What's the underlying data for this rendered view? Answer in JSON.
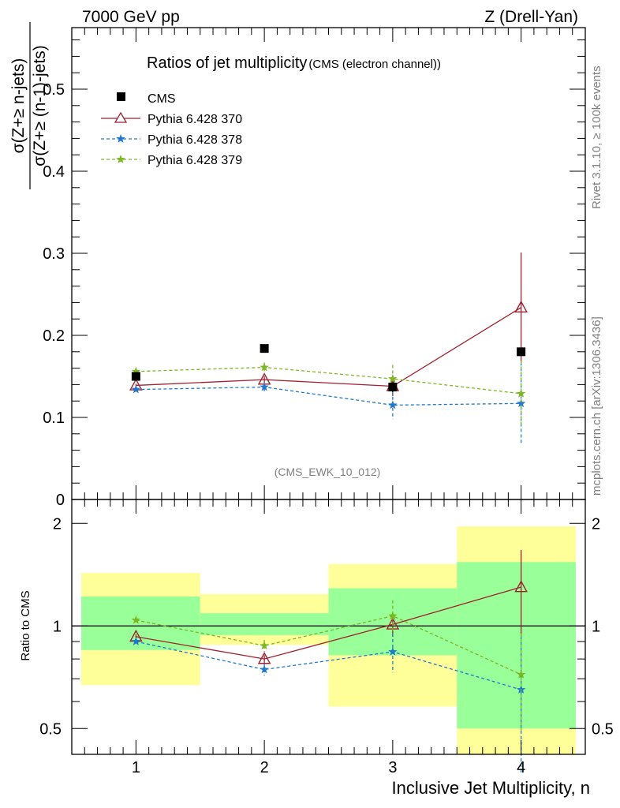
{
  "header": {
    "left": "7000 GeV pp",
    "right": "Z (Drell-Yan)"
  },
  "side_text": {
    "rivet": "Rivet 3.1.10, ≥ 100k events",
    "mcplots": "mcplots.cern.ch [arXiv:1306.3436]"
  },
  "chart_data": [
    {
      "type": "line",
      "panel": "main",
      "title": "Ratios of jet multiplicity",
      "subtitle": "(CMS (electron channel))",
      "watermark": "(CMS_EWK_10_012)",
      "ylabel_numerator": "σ(Z+≥ n-jets)",
      "ylabel_denominator": "σ(Z+≥ (n-1)-jets)",
      "xlabel": "",
      "xlim": [
        0.5,
        4.5
      ],
      "ylim": [
        0,
        0.575
      ],
      "yticks": [
        0,
        0.1,
        0.2,
        0.3,
        0.4,
        0.5
      ],
      "ytick_labels": [
        "0",
        "0.1",
        "0.2",
        "0.3",
        "0.4",
        "0.5"
      ],
      "legend_position": "top-left",
      "x": [
        1,
        2,
        3,
        4
      ],
      "series": [
        {
          "name": "CMS",
          "style": "data",
          "color": "#000000",
          "values": [
            0.15,
            0.184,
            0.137,
            0.18
          ],
          "err_lo": [
            0.005,
            0.004,
            0.006,
            0.004
          ],
          "err_hi": [
            0.005,
            0.004,
            0.006,
            0.004
          ]
        },
        {
          "name": "Pythia 6.428 370",
          "style": "solid",
          "marker": "open-triangle",
          "color": "#a0202e",
          "values": [
            0.139,
            0.146,
            0.138,
            0.234
          ],
          "err_lo": [
            0.002,
            0.004,
            0.012,
            0.067
          ],
          "err_hi": [
            0.002,
            0.004,
            0.012,
            0.067
          ]
        },
        {
          "name": "Pythia 6.428 378",
          "style": "dashed",
          "marker": "star",
          "color": "#1f78d0",
          "values": [
            0.134,
            0.137,
            0.115,
            0.117
          ],
          "err_lo": [
            0.002,
            0.005,
            0.017,
            0.05
          ],
          "err_hi": [
            0.002,
            0.005,
            0.017,
            0.05
          ]
        },
        {
          "name": "Pythia 6.428 379",
          "style": "dashed",
          "marker": "star",
          "color": "#7cb721",
          "values": [
            0.156,
            0.161,
            0.147,
            0.129
          ],
          "err_lo": [
            0.002,
            0.006,
            0.017,
            0.04
          ],
          "err_hi": [
            0.002,
            0.006,
            0.017,
            0.04
          ]
        }
      ]
    },
    {
      "type": "line",
      "panel": "ratio",
      "ylabel": "Ratio to CMS",
      "xlabel": "Inclusive Jet Multiplicity, n",
      "xlim": [
        0.5,
        4.5
      ],
      "ylim": [
        0.42,
        2.35
      ],
      "y_scale": "log",
      "yticks": [
        0.5,
        1,
        2
      ],
      "ytick_labels": [
        "0.5",
        "1",
        "2"
      ],
      "xticks": [
        1,
        2,
        3,
        4
      ],
      "xtick_labels": [
        "1",
        "2",
        "3",
        "4"
      ],
      "bands": [
        {
          "x_lo": 0.5,
          "x_hi": 1.5,
          "green": [
            0.85,
            1.22
          ],
          "yellow": [
            0.67,
            1.43
          ]
        },
        {
          "x_lo": 1.5,
          "x_hi": 2.5,
          "green": [
            0.94,
            1.09
          ],
          "yellow": [
            0.88,
            1.24
          ]
        },
        {
          "x_lo": 2.5,
          "x_hi": 3.5,
          "green": [
            0.82,
            1.29
          ],
          "yellow": [
            0.58,
            1.52
          ]
        },
        {
          "x_lo": 3.5,
          "x_hi": 4.5,
          "green": [
            0.5,
            1.54
          ],
          "yellow": [
            0.42,
            1.96
          ]
        }
      ],
      "x": [
        1,
        2,
        3,
        4
      ],
      "series": [
        {
          "name": "Pythia 6.428 370",
          "style": "solid",
          "marker": "open-triangle",
          "color": "#a0202e",
          "values": [
            0.93,
            0.8,
            1.01,
            1.3
          ],
          "err_lo": [
            0.015,
            0.02,
            0.08,
            0.37
          ],
          "err_hi": [
            0.015,
            0.02,
            0.08,
            0.37
          ]
        },
        {
          "name": "Pythia 6.428 378",
          "style": "dashed",
          "marker": "star",
          "color": "#1f78d0",
          "values": [
            0.9,
            0.745,
            0.84,
            0.65
          ],
          "err_lo": [
            0.015,
            0.03,
            0.11,
            0.28
          ],
          "err_hi": [
            0.015,
            0.03,
            0.11,
            0.28
          ]
        },
        {
          "name": "Pythia 6.428 379",
          "style": "dashed",
          "marker": "star",
          "color": "#7cb721",
          "values": [
            1.04,
            0.875,
            1.07,
            0.72
          ],
          "err_lo": [
            0.015,
            0.035,
            0.12,
            0.23
          ],
          "err_hi": [
            0.015,
            0.035,
            0.12,
            0.23
          ]
        }
      ]
    }
  ]
}
